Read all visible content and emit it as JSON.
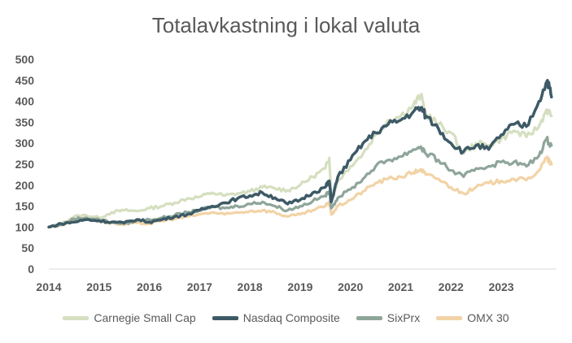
{
  "chart_data": {
    "type": "line",
    "title": "Totalavkastning i lokal valuta",
    "xlabel": "",
    "ylabel": "",
    "ylim": [
      0,
      500
    ],
    "yticks": [
      0,
      50,
      100,
      150,
      200,
      250,
      300,
      350,
      400,
      450,
      500
    ],
    "xticks": [
      "2014",
      "2015",
      "2016",
      "2017",
      "2018",
      "2019",
      "2020",
      "2021",
      "2022",
      "2023"
    ],
    "xlim": [
      2014,
      2024.1
    ],
    "grid": false,
    "legend_position": "bottom",
    "series": [
      {
        "name": "Carnegie Small Cap",
        "color": "#d5dfc0",
        "points": [
          [
            2014.0,
            100
          ],
          [
            2014.25,
            108
          ],
          [
            2014.5,
            125
          ],
          [
            2014.75,
            128
          ],
          [
            2015.0,
            122
          ],
          [
            2015.25,
            135
          ],
          [
            2015.5,
            140
          ],
          [
            2015.75,
            138
          ],
          [
            2016.0,
            145
          ],
          [
            2016.25,
            150
          ],
          [
            2016.5,
            158
          ],
          [
            2016.75,
            168
          ],
          [
            2017.0,
            172
          ],
          [
            2017.25,
            182
          ],
          [
            2017.5,
            175
          ],
          [
            2017.75,
            180
          ],
          [
            2018.0,
            185
          ],
          [
            2018.25,
            195
          ],
          [
            2018.5,
            192
          ],
          [
            2018.75,
            188
          ],
          [
            2019.0,
            200
          ],
          [
            2019.25,
            220
          ],
          [
            2019.5,
            240
          ],
          [
            2019.58,
            265
          ],
          [
            2019.62,
            165
          ],
          [
            2019.75,
            210
          ],
          [
            2020.0,
            245
          ],
          [
            2020.25,
            275
          ],
          [
            2020.5,
            320
          ],
          [
            2020.75,
            355
          ],
          [
            2021.0,
            365
          ],
          [
            2021.25,
            390
          ],
          [
            2021.4,
            415
          ],
          [
            2021.5,
            370
          ],
          [
            2021.75,
            345
          ],
          [
            2022.0,
            325
          ],
          [
            2022.25,
            275
          ],
          [
            2022.5,
            300
          ],
          [
            2022.75,
            295
          ],
          [
            2023.0,
            310
          ],
          [
            2023.25,
            330
          ],
          [
            2023.5,
            315
          ],
          [
            2023.75,
            340
          ],
          [
            2023.9,
            380
          ],
          [
            2024.0,
            365
          ]
        ]
      },
      {
        "name": "Nasdaq Composite",
        "color": "#3d5a66",
        "points": [
          [
            2014.0,
            100
          ],
          [
            2014.25,
            108
          ],
          [
            2014.5,
            112
          ],
          [
            2014.75,
            118
          ],
          [
            2015.0,
            115
          ],
          [
            2015.25,
            112
          ],
          [
            2015.5,
            110
          ],
          [
            2015.75,
            118
          ],
          [
            2016.0,
            112
          ],
          [
            2016.25,
            118
          ],
          [
            2016.5,
            125
          ],
          [
            2016.75,
            130
          ],
          [
            2017.0,
            140
          ],
          [
            2017.25,
            150
          ],
          [
            2017.5,
            158
          ],
          [
            2017.75,
            168
          ],
          [
            2018.0,
            175
          ],
          [
            2018.25,
            182
          ],
          [
            2018.5,
            170
          ],
          [
            2018.75,
            155
          ],
          [
            2019.0,
            165
          ],
          [
            2019.25,
            182
          ],
          [
            2019.5,
            195
          ],
          [
            2019.58,
            210
          ],
          [
            2019.62,
            160
          ],
          [
            2019.75,
            220
          ],
          [
            2020.0,
            260
          ],
          [
            2020.25,
            300
          ],
          [
            2020.5,
            325
          ],
          [
            2020.75,
            345
          ],
          [
            2021.0,
            355
          ],
          [
            2021.25,
            375
          ],
          [
            2021.4,
            385
          ],
          [
            2021.5,
            365
          ],
          [
            2021.75,
            335
          ],
          [
            2022.0,
            300
          ],
          [
            2022.25,
            280
          ],
          [
            2022.5,
            295
          ],
          [
            2022.75,
            285
          ],
          [
            2023.0,
            320
          ],
          [
            2023.25,
            345
          ],
          [
            2023.5,
            340
          ],
          [
            2023.75,
            400
          ],
          [
            2023.92,
            450
          ],
          [
            2024.0,
            410
          ]
        ]
      },
      {
        "name": "SixPrx",
        "color": "#8ea59a",
        "points": [
          [
            2014.0,
            100
          ],
          [
            2014.25,
            105
          ],
          [
            2014.5,
            120
          ],
          [
            2014.75,
            122
          ],
          [
            2015.0,
            118
          ],
          [
            2015.25,
            112
          ],
          [
            2015.5,
            108
          ],
          [
            2015.75,
            115
          ],
          [
            2016.0,
            118
          ],
          [
            2016.25,
            122
          ],
          [
            2016.5,
            128
          ],
          [
            2016.75,
            135
          ],
          [
            2017.0,
            140
          ],
          [
            2017.25,
            148
          ],
          [
            2017.5,
            145
          ],
          [
            2017.75,
            150
          ],
          [
            2018.0,
            155
          ],
          [
            2018.25,
            160
          ],
          [
            2018.5,
            150
          ],
          [
            2018.75,
            140
          ],
          [
            2019.0,
            150
          ],
          [
            2019.25,
            162
          ],
          [
            2019.5,
            175
          ],
          [
            2019.58,
            185
          ],
          [
            2019.62,
            145
          ],
          [
            2019.75,
            170
          ],
          [
            2020.0,
            190
          ],
          [
            2020.25,
            215
          ],
          [
            2020.5,
            245
          ],
          [
            2020.75,
            260
          ],
          [
            2021.0,
            268
          ],
          [
            2021.25,
            285
          ],
          [
            2021.4,
            292
          ],
          [
            2021.5,
            275
          ],
          [
            2021.75,
            260
          ],
          [
            2022.0,
            235
          ],
          [
            2022.25,
            220
          ],
          [
            2022.5,
            240
          ],
          [
            2022.75,
            245
          ],
          [
            2023.0,
            255
          ],
          [
            2023.25,
            255
          ],
          [
            2023.5,
            245
          ],
          [
            2023.75,
            270
          ],
          [
            2023.9,
            310
          ],
          [
            2024.0,
            295
          ]
        ]
      },
      {
        "name": "OMX 30",
        "color": "#f2d3a6",
        "points": [
          [
            2014.0,
            100
          ],
          [
            2014.25,
            105
          ],
          [
            2014.5,
            118
          ],
          [
            2014.75,
            120
          ],
          [
            2015.0,
            115
          ],
          [
            2015.25,
            110
          ],
          [
            2015.5,
            105
          ],
          [
            2015.75,
            110
          ],
          [
            2016.0,
            108
          ],
          [
            2016.25,
            115
          ],
          [
            2016.5,
            120
          ],
          [
            2016.75,
            125
          ],
          [
            2017.0,
            130
          ],
          [
            2017.25,
            135
          ],
          [
            2017.5,
            130
          ],
          [
            2017.75,
            135
          ],
          [
            2018.0,
            138
          ],
          [
            2018.25,
            140
          ],
          [
            2018.5,
            135
          ],
          [
            2018.75,
            125
          ],
          [
            2019.0,
            130
          ],
          [
            2019.25,
            140
          ],
          [
            2019.5,
            150
          ],
          [
            2019.58,
            160
          ],
          [
            2019.62,
            130
          ],
          [
            2019.75,
            150
          ],
          [
            2020.0,
            165
          ],
          [
            2020.25,
            185
          ],
          [
            2020.5,
            205
          ],
          [
            2020.75,
            215
          ],
          [
            2021.0,
            220
          ],
          [
            2021.25,
            230
          ],
          [
            2021.4,
            238
          ],
          [
            2021.5,
            225
          ],
          [
            2021.75,
            215
          ],
          [
            2022.0,
            195
          ],
          [
            2022.25,
            180
          ],
          [
            2022.5,
            195
          ],
          [
            2022.75,
            205
          ],
          [
            2023.0,
            210
          ],
          [
            2023.25,
            215
          ],
          [
            2023.5,
            212
          ],
          [
            2023.75,
            235
          ],
          [
            2023.9,
            265
          ],
          [
            2024.0,
            250
          ]
        ]
      }
    ]
  }
}
